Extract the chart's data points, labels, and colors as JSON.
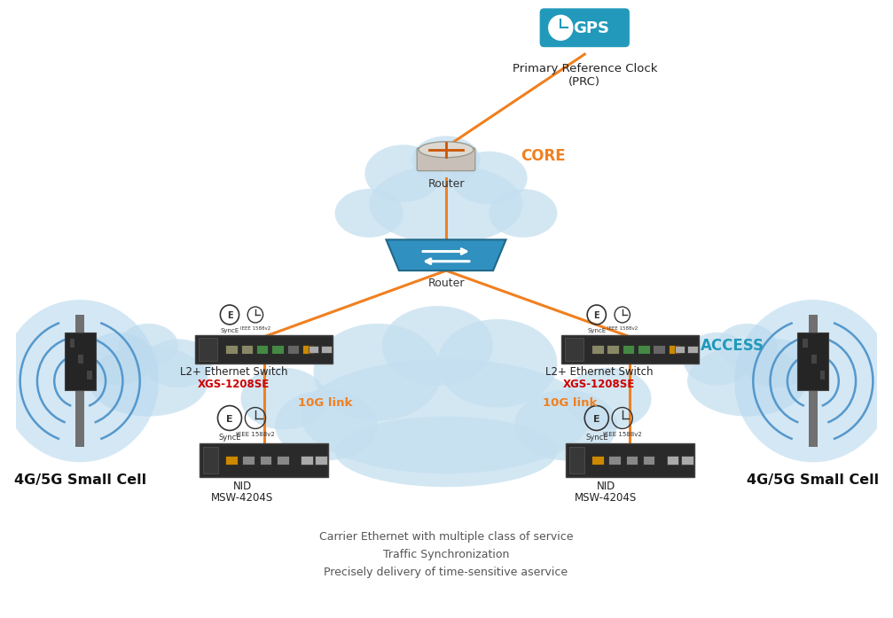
{
  "bg_color": "#ffffff",
  "gps_bg": "#2299bb",
  "prc_label": "Primary Reference Clock\n(PRC)",
  "core_label": "CORE",
  "core_color": "#f08020",
  "access_label": "ACCESS",
  "access_color": "#2299bb",
  "router_top_label": "Router",
  "router_bottom_label": "Router",
  "switch_label": "L2+ Ethernet Switch",
  "switch_model": "XGS-1208SE",
  "switch_model_color": "#cc0000",
  "nid_label": "NID",
  "nid_model": "MSW-4204S",
  "link_label": "10G link",
  "link_color": "#f08020",
  "cell_label": "4G/5G Small Cell",
  "cell_label_color": "#111111",
  "bottom_text": [
    "Carrier Ethernet with multiple class of service",
    "Traffic Synchronization",
    "Precisely delivery of time-sensitive aservice"
  ],
  "cloud_color": "#c5dff0",
  "cloud_alpha": 0.75,
  "arrow_color": "#f08020",
  "arrow_linewidth": 2.2
}
